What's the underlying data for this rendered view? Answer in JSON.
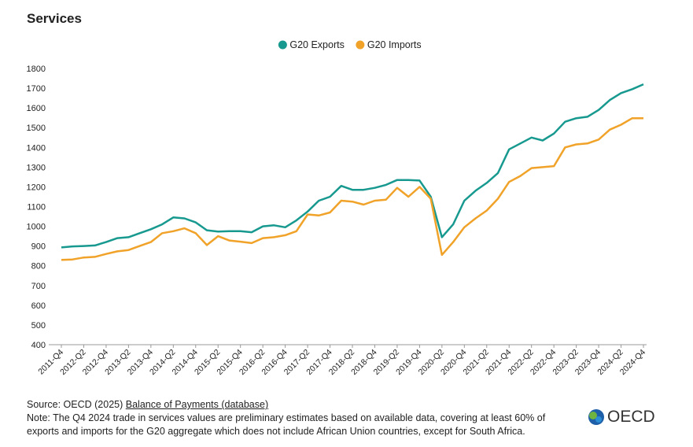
{
  "chart_data": {
    "type": "line",
    "title": "Services",
    "categories": [
      "2011-Q4",
      null,
      "2012-Q2",
      null,
      "2012-Q4",
      null,
      "2013-Q2",
      null,
      "2013-Q4",
      null,
      "2014-Q2",
      null,
      "2014-Q4",
      null,
      "2015-Q2",
      null,
      "2015-Q4",
      null,
      "2016-Q2",
      null,
      "2016-Q4",
      null,
      "2017-Q2",
      null,
      "2017-Q4",
      null,
      "2018-Q2",
      null,
      "2018-Q4",
      null,
      "2019-Q2",
      null,
      "2019-Q4",
      null,
      "2020-Q2",
      null,
      "2020-Q4",
      null,
      "2021-Q2",
      null,
      "2021-Q4",
      null,
      "2022-Q2",
      null,
      "2022-Q4",
      null,
      "2023-Q2",
      null,
      "2023-Q4",
      null,
      "2024-Q2",
      null,
      "2024-Q4"
    ],
    "series": [
      {
        "name": "G20 Exports",
        "color": "#17998f",
        "values": [
          893,
          898,
          900,
          903,
          920,
          940,
          945,
          965,
          985,
          1010,
          1045,
          1040,
          1020,
          980,
          973,
          975,
          975,
          970,
          1000,
          1005,
          995,
          1030,
          1075,
          1130,
          1150,
          1205,
          1185,
          1185,
          1195,
          1210,
          1235,
          1235,
          1232,
          1150,
          945,
          1010,
          1130,
          1180,
          1220,
          1270,
          1390,
          1420,
          1450,
          1435,
          1470,
          1530,
          1548,
          1555,
          1590,
          1640,
          1675,
          1695,
          1720
        ]
      },
      {
        "name": "G20 Imports",
        "color": "#f0a229",
        "values": [
          830,
          832,
          842,
          845,
          860,
          873,
          880,
          900,
          920,
          965,
          975,
          990,
          965,
          905,
          950,
          928,
          922,
          915,
          940,
          945,
          955,
          975,
          1060,
          1055,
          1070,
          1130,
          1125,
          1110,
          1130,
          1135,
          1195,
          1150,
          1200,
          1140,
          855,
          920,
          995,
          1040,
          1080,
          1140,
          1225,
          1255,
          1295,
          1300,
          1305,
          1400,
          1415,
          1420,
          1440,
          1490,
          1515,
          1548,
          1548
        ]
      }
    ],
    "ylim": [
      400,
      1800
    ],
    "yticks": [
      400,
      500,
      600,
      700,
      800,
      900,
      1000,
      1100,
      1200,
      1300,
      1400,
      1500,
      1600,
      1700,
      1800
    ],
    "grid": false
  },
  "footer": {
    "source": "Source: OECD (2025)",
    "source_link": "Balance of Payments (database)",
    "note": "Note: The Q4 2024 trade in services values are preliminary estimates based on available data, covering at least 60% of exports and imports for the G20 aggregate which does not include African Union countries, except for South Africa.",
    "logo": "OECD"
  }
}
